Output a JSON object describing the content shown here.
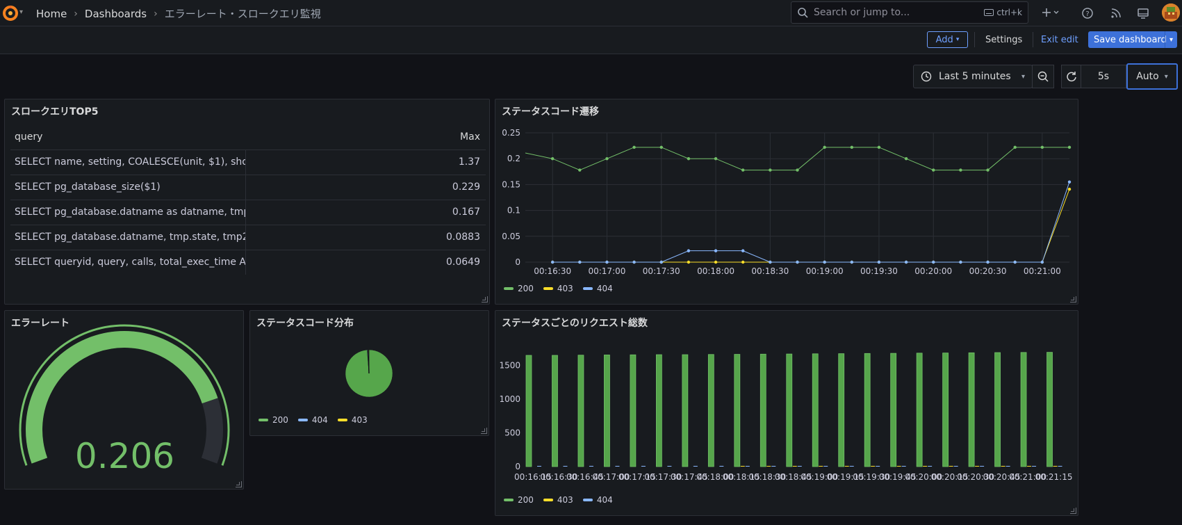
{
  "breadcrumb": {
    "home": "Home",
    "dashboards": "Dashboards",
    "current": "エラーレート・スロークエリ監視"
  },
  "search": {
    "placeholder": "Search or jump to...",
    "shortcut": "ctrl+k"
  },
  "toolbar": {
    "add_label": "Add",
    "settings_label": "Settings",
    "exit_edit_label": "Exit edit",
    "save_label": "Save dashboard"
  },
  "timepicker": {
    "range": "Last 5 minutes",
    "refresh_interval": "5s",
    "auto_label": "Auto"
  },
  "colors": {
    "s200": "#73bf69",
    "s403": "#fade2a",
    "s404": "#8ab8ff",
    "accent": "#3d71d9"
  },
  "panels": {
    "slow_queries": {
      "title": "スロークエリTOP5",
      "columns": [
        "query",
        "Max"
      ],
      "rows": [
        {
          "query": "SELECT name, setting, COALESCE(unit, $1), sho",
          "max": "1.37"
        },
        {
          "query": "SELECT pg_database_size($1)",
          "max": "0.229"
        },
        {
          "query": "SELECT pg_database.datname as datname, tmp.",
          "max": "0.167"
        },
        {
          "query": "SELECT pg_database.datname, tmp.state, tmp2.",
          "max": "0.0883"
        },
        {
          "query": "SELECT queryid, query, calls, total_exec_time AS",
          "max": "0.0649"
        }
      ]
    },
    "status_trend": {
      "title": "ステータスコード遷移"
    },
    "error_rate": {
      "title": "エラーレート",
      "value": "0.206"
    },
    "status_dist": {
      "title": "ステータスコード分布",
      "legend": [
        "200",
        "404",
        "403"
      ]
    },
    "request_totals": {
      "title": "ステータスごとのリクエスト総数"
    }
  },
  "chart_data": [
    {
      "type": "line",
      "x": [
        "00:16:25",
        "00:16:30",
        "00:16:45",
        "00:17:00",
        "00:17:15",
        "00:17:30",
        "00:17:45",
        "00:18:00",
        "00:18:15",
        "00:18:30",
        "00:18:45",
        "00:19:00",
        "00:19:15",
        "00:19:30",
        "00:19:45",
        "00:20:00",
        "00:20:15",
        "00:20:30",
        "00:20:45",
        "00:21:00",
        "00:21:15"
      ],
      "xticks": [
        "00:16:30",
        "00:17:00",
        "00:17:30",
        "00:18:00",
        "00:18:30",
        "00:19:00",
        "00:19:30",
        "00:20:00",
        "00:20:30",
        "00:21:00"
      ],
      "yticks": [
        "0",
        "0.05",
        "0.1",
        "0.15",
        "0.2",
        "0.25"
      ],
      "ylim": [
        0,
        0.25
      ],
      "series": [
        {
          "name": "200",
          "values": [
            0.211,
            0.2,
            0.178,
            0.2,
            0.222,
            0.222,
            0.2,
            0.2,
            0.178,
            0.178,
            0.178,
            0.222,
            0.222,
            0.222,
            0.2,
            0.178,
            0.178,
            0.178,
            0.222,
            0.222,
            0.222
          ]
        },
        {
          "name": "403",
          "values": [
            null,
            0,
            0,
            0,
            0,
            0,
            0,
            0,
            0,
            0,
            0,
            0,
            0,
            0,
            0,
            0,
            0,
            0,
            0,
            0,
            0.141
          ]
        },
        {
          "name": "404",
          "values": [
            null,
            0,
            0,
            0,
            0,
            0,
            0.022,
            0.022,
            0.022,
            0,
            0,
            0,
            0,
            0,
            0,
            0,
            0,
            0,
            0,
            0,
            0.155
          ]
        }
      ],
      "legend": [
        "200",
        "403",
        "404"
      ],
      "legend_placement": "bottom-left",
      "grid": true
    },
    {
      "type": "gauge",
      "value": 0.206,
      "min": 0,
      "max": 0.25
    },
    {
      "type": "pie",
      "slices": [
        {
          "name": "200",
          "value": 0.988
        },
        {
          "name": "404",
          "value": 0.004
        },
        {
          "name": "403",
          "value": 0.008
        }
      ]
    },
    {
      "type": "bar",
      "categories": [
        "00:16:15",
        "00:16:30",
        "00:16:45",
        "00:17:00",
        "00:17:15",
        "00:17:30",
        "00:17:45",
        "00:18:00",
        "00:18:15",
        "00:18:30",
        "00:18:45",
        "00:19:00",
        "00:19:15",
        "00:19:30",
        "00:19:45",
        "00:20:00",
        "00:20:15",
        "00:20:30",
        "00:20:45",
        "00:21:00",
        "00:21:15"
      ],
      "yticks": [
        "0",
        "500",
        "1000",
        "1500"
      ],
      "ylim": [
        0,
        1900
      ],
      "series": [
        {
          "name": "200",
          "values": [
            1652,
            1652,
            1655,
            1658,
            1660,
            1662,
            1662,
            1665,
            1667,
            1670,
            1672,
            1675,
            1677,
            1680,
            1682,
            1685,
            1687,
            1690,
            1693,
            1695,
            1697
          ]
        },
        {
          "name": "403",
          "values": [
            0,
            0,
            0,
            0,
            0,
            0,
            0,
            0,
            6,
            6,
            6,
            6,
            6,
            6,
            6,
            6,
            6,
            6,
            6,
            6,
            6
          ]
        },
        {
          "name": "404",
          "values": [
            5,
            5,
            5,
            5,
            5,
            5,
            6,
            6,
            6,
            6,
            6,
            6,
            6,
            6,
            6,
            6,
            6,
            6,
            6,
            6,
            6
          ]
        }
      ],
      "legend": [
        "200",
        "403",
        "404"
      ],
      "legend_placement": "bottom-left"
    }
  ]
}
